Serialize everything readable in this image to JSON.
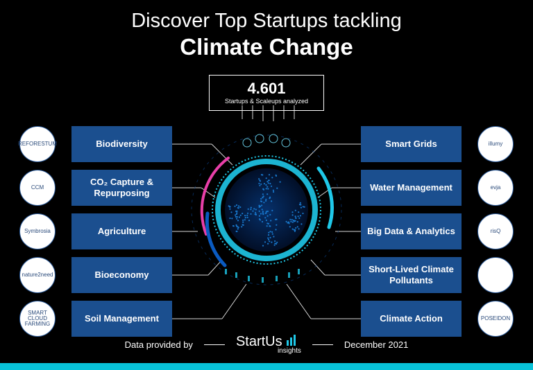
{
  "title": {
    "line1": "Discover Top Startups tackling",
    "line2": "Climate Change"
  },
  "stat": {
    "value": "4.601",
    "label": "Startups & Scaleups analyzed"
  },
  "colors": {
    "category_bg": "#1b4f8f",
    "accent_cyan": "#1fc8e8",
    "accent_magenta": "#e83fa8",
    "accent_blue": "#0a4aa8",
    "bottom_strip": "#08c2d8",
    "brand_bar": "#1fc8e8"
  },
  "left": [
    {
      "logo": "REFORESTUM",
      "label": "Biodiversity"
    },
    {
      "logo": "CCM",
      "label": "CO₂ Capture & Repurposing"
    },
    {
      "logo": "Symbrosia",
      "label": "Agriculture"
    },
    {
      "logo": "nature2need",
      "label": "Bioeconomy"
    },
    {
      "logo": "SMART CLOUD FARMING",
      "label": "Soil Management"
    }
  ],
  "right": [
    {
      "logo": "illumy",
      "label": "Smart Grids"
    },
    {
      "logo": "evja",
      "label": "Water Management"
    },
    {
      "logo": "risQ",
      "label": "Big Data & Analytics"
    },
    {
      "logo": "",
      "label": "Short-Lived Climate Pollutants"
    },
    {
      "logo": "POSEIDON",
      "label": "Climate Action"
    }
  ],
  "footer": {
    "prefix": "Data provided by",
    "brand": "StartUs",
    "brand_sub": "insights",
    "date": "December 2021"
  },
  "globe": {
    "ring_colors": [
      "#1fc8e8",
      "#0a5ac0",
      "#e83fa8",
      "#0a3a7a"
    ],
    "dot_color": "#0a78c8"
  }
}
